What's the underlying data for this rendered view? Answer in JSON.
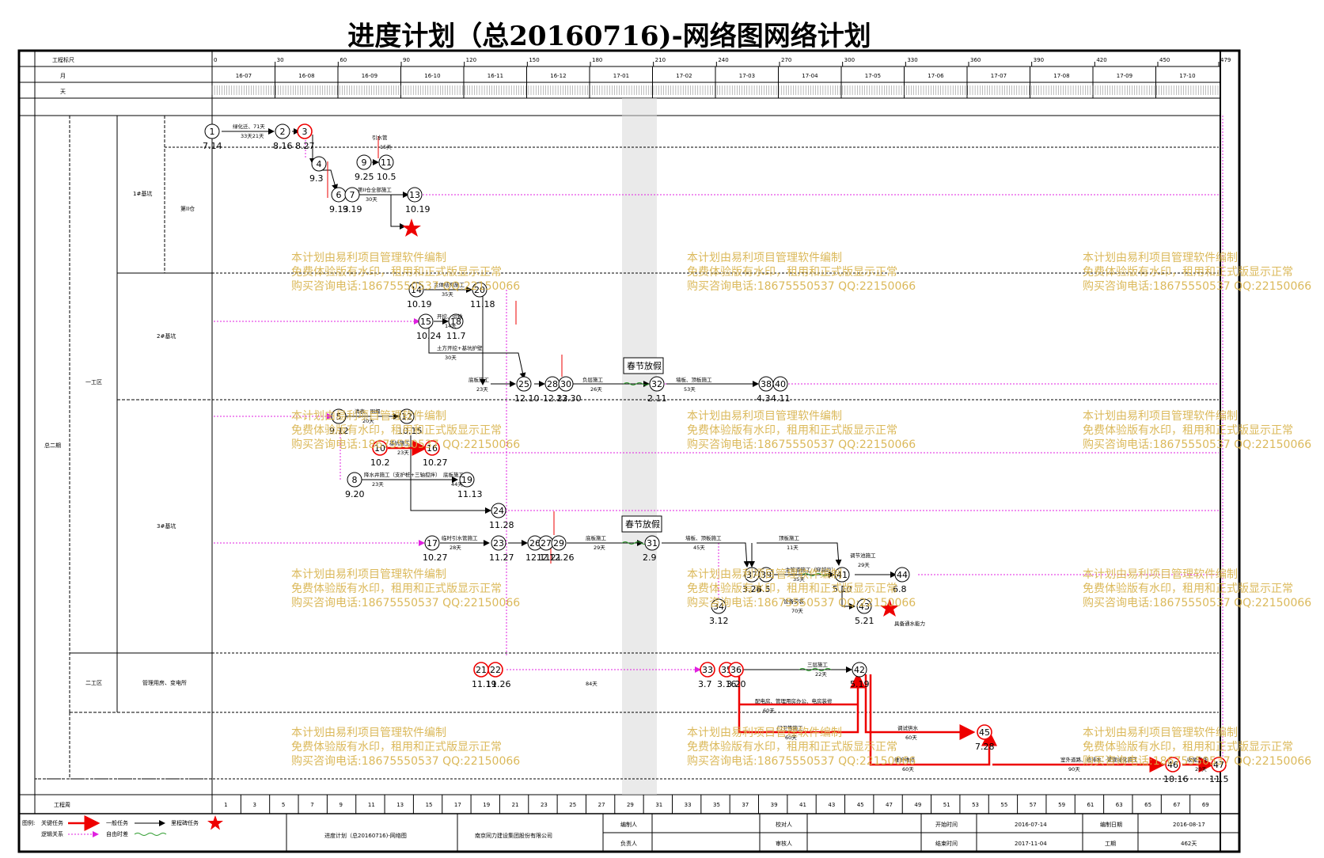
{
  "title": "进度计划（总20160716)-网络图网络计划",
  "scale_rows": {
    "row1_label": "工程标尺",
    "row2_label": "月",
    "row3_label": "天",
    "bottom_label": "工程周",
    "day_ticks": [
      "0",
      "30",
      "60",
      "90",
      "120",
      "150",
      "180",
      "210",
      "240",
      "270",
      "300",
      "330",
      "360",
      "390",
      "420",
      "450",
      "479"
    ],
    "months": [
      "16-07",
      "16-08",
      "16-09",
      "16-10",
      "16-11",
      "16-12",
      "17-01",
      "17-02",
      "17-03",
      "17-04",
      "17-05",
      "17-06",
      "17-07",
      "17-08",
      "17-09",
      "17-10"
    ],
    "weeks": [
      "1",
      "3",
      "5",
      "7",
      "9",
      "11",
      "13",
      "15",
      "17",
      "19",
      "21",
      "23",
      "25",
      "27",
      "29",
      "31",
      "33",
      "35",
      "37",
      "39",
      "41",
      "43",
      "45",
      "47",
      "49",
      "51",
      "53",
      "55",
      "57",
      "59",
      "61",
      "63",
      "65",
      "67",
      "69"
    ]
  },
  "zones": {
    "level1": "总二期",
    "level2_a": "一工区",
    "level2_b": "二工区",
    "bldg1": "1#基坑",
    "bldg1_sub": "第II仓",
    "bldg2": "2#基坑",
    "bldg3": "3#基坑",
    "zone2_sub": "管理用房、变电所"
  },
  "watermark": {
    "line1": "本计划由易利项目管理软件编制",
    "line2": "免费体验版有水印，租用和正式版显示正常",
    "line3": "购买咨询电话:18675550537 QQ:22150066"
  },
  "holiday_label": "春节放假",
  "nodes": [
    {
      "id": "1",
      "date": "7.14"
    },
    {
      "id": "2",
      "date": "8.16"
    },
    {
      "id": "3",
      "date": "8.27"
    },
    {
      "id": "4",
      "date": "9.3"
    },
    {
      "id": "6",
      "date": "9.13"
    },
    {
      "id": "7",
      "date": "9.19"
    },
    {
      "id": "9",
      "date": "9.25"
    },
    {
      "id": "11",
      "date": "10.5"
    },
    {
      "id": "13",
      "date": "10.19"
    },
    {
      "id": "14",
      "date": "10.19"
    },
    {
      "id": "20",
      "date": "11.18"
    },
    {
      "id": "15",
      "date": "10.24"
    },
    {
      "id": "18",
      "date": "11.7"
    },
    {
      "id": "25",
      "date": "12.10"
    },
    {
      "id": "28",
      "date": "12.23"
    },
    {
      "id": "30",
      "date": "12.30"
    },
    {
      "id": "32",
      "date": "2.11"
    },
    {
      "id": "38",
      "date": "4.3"
    },
    {
      "id": "40",
      "date": "4.11"
    },
    {
      "id": "5",
      "date": "9.12"
    },
    {
      "id": "12",
      "date": "10.15"
    },
    {
      "id": "10",
      "date": "10.2"
    },
    {
      "id": "16",
      "date": "10.27"
    },
    {
      "id": "8",
      "date": "9.20"
    },
    {
      "id": "19",
      "date": "11.13"
    },
    {
      "id": "24",
      "date": "11.28"
    },
    {
      "id": "17",
      "date": "10.27"
    },
    {
      "id": "23",
      "date": "11.27"
    },
    {
      "id": "26",
      "date": "12.11"
    },
    {
      "id": "27",
      "date": "12.21"
    },
    {
      "id": "29",
      "date": "12.26"
    },
    {
      "id": "31",
      "date": "2.9"
    },
    {
      "id": "37",
      "date": "3.28"
    },
    {
      "id": "39",
      "date": "4.5"
    },
    {
      "id": "41",
      "date": "5.10"
    },
    {
      "id": "44",
      "date": "6.8"
    },
    {
      "id": "34",
      "date": "3.12"
    },
    {
      "id": "43",
      "date": "5.21"
    },
    {
      "id": "21",
      "date": "11.19"
    },
    {
      "id": "22",
      "date": "11.26"
    },
    {
      "id": "33",
      "date": "3.7"
    },
    {
      "id": "35",
      "date": "3.16"
    },
    {
      "id": "36",
      "date": "3.20"
    },
    {
      "id": "42",
      "date": "5.19"
    },
    {
      "id": "45",
      "date": "7.28"
    },
    {
      "id": "46",
      "date": "10.16"
    },
    {
      "id": "47",
      "date": "11.5"
    }
  ],
  "activities": [
    {
      "label": "绿化迁、71天",
      "dur": "33天21天"
    },
    {
      "label": "引水管",
      "dur": "15天"
    },
    {
      "label": "第II仓全部施工",
      "dur": "30天"
    },
    {
      "label": "主体结构施工",
      "dur": "35天"
    },
    {
      "label": "开挖、运输",
      "dur": "14天"
    },
    {
      "label": "土方开挖+基坑护壁",
      "dur": "30天"
    },
    {
      "label": "底板施工",
      "dur": "23天"
    },
    {
      "label": "负层施工",
      "dur": "26天"
    },
    {
      "label": "墙板、顶板施工",
      "dur": "53天"
    },
    {
      "label": "清表、围堰",
      "dur": "20天"
    },
    {
      "label": "基坑施工",
      "dur": "23天"
    },
    {
      "label": "降水井施工（支护桩+三轴搅拌）",
      "dur": "23天"
    },
    {
      "label": "底板施工",
      "dur": "44天"
    },
    {
      "label": "临时引水管施工",
      "dur": "28天"
    },
    {
      "label": "底板施工",
      "dur": "29天"
    },
    {
      "label": "墙板、顶板施工",
      "dur": "45天"
    },
    {
      "label": "顶板施工",
      "dur": "11天"
    },
    {
      "label": "主管道施工（穿越段）",
      "dur": "35天"
    },
    {
      "label": "设备安装",
      "dur": "70天"
    },
    {
      "label": "调节池施工",
      "dur": "29天"
    },
    {
      "label": "三层施工",
      "dur": "22天"
    },
    {
      "label": "配电房、管理用房办公、电房装修",
      "dur": "60天"
    },
    {
      "label": "门卫等施工",
      "dur": "60天"
    },
    {
      "label": "调试供水",
      "dur": "60天"
    },
    {
      "label": "维护维修",
      "dur": "60天"
    },
    {
      "label": "室外道路、给排水、景观绿化施工",
      "dur": "90天"
    },
    {
      "label": "收尾工作",
      "dur": "20天"
    },
    {
      "label": "84天",
      "dur": ""
    },
    {
      "label": "具备通水能力",
      "dur": ""
    }
  ],
  "legend": {
    "title": "图例:",
    "critical": "关键任务",
    "normal": "一般任务",
    "milestone": "里程碑任务",
    "logic": "逻辑关系",
    "float": "自由时差",
    "wave": ""
  },
  "footer": {
    "plan_name": "进度计划（总20160716)-网络图",
    "company": "南京同力建设集团股份有限公司",
    "compiler_label": "编制人",
    "leader_label": "负责人",
    "checker_label": "校对人",
    "reviewer_label": "审核人",
    "start_label": "开始时间",
    "start_value": "2016-07-14",
    "end_label": "结束时间",
    "end_value": "2017-11-04",
    "date_label": "编制日期",
    "date_value": "2016-08-17",
    "duration_label": "工期",
    "duration_value": "462天"
  }
}
